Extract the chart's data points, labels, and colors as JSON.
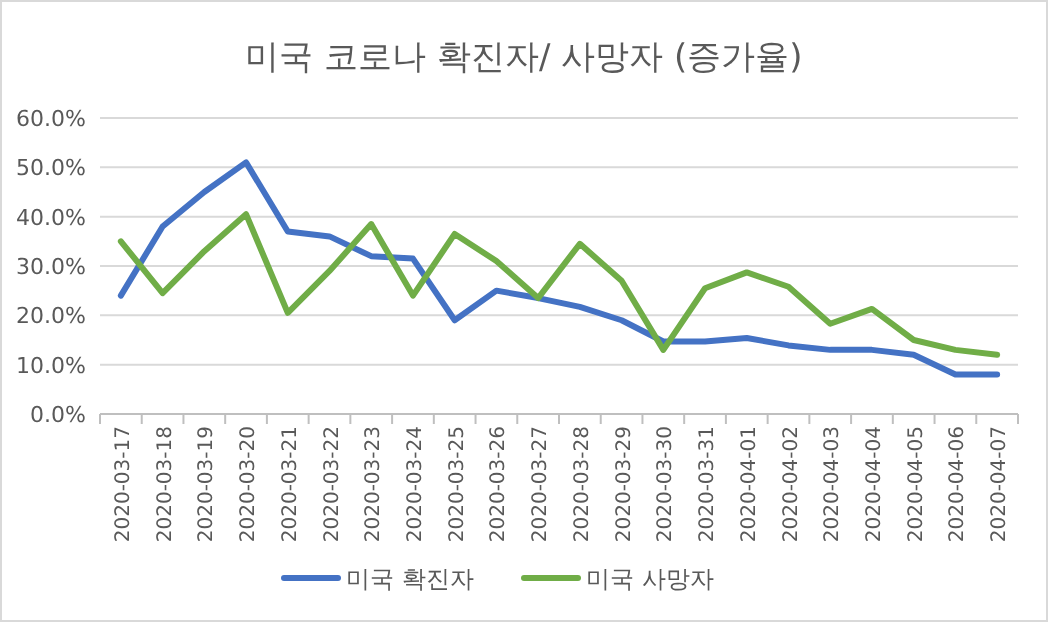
{
  "chart_data": {
    "type": "line",
    "title": "미국 코로나 확진자/ 사망자 (증가율)",
    "categories": [
      "2020-03-17",
      "2020-03-18",
      "2020-03-19",
      "2020-03-20",
      "2020-03-21",
      "2020-03-22",
      "2020-03-23",
      "2020-03-24",
      "2020-03-25",
      "2020-03-26",
      "2020-03-27",
      "2020-03-28",
      "2020-03-29",
      "2020-03-30",
      "2020-03-31",
      "2020-04-01",
      "2020-04-02",
      "2020-04-03",
      "2020-04-04",
      "2020-04-05",
      "2020-04-06",
      "2020-04-07"
    ],
    "series": [
      {
        "name": "미국 확진자",
        "color": "#4472c4",
        "values": [
          24,
          38,
          45,
          51,
          37,
          36,
          32,
          31.5,
          19,
          25,
          23.5,
          21.7,
          19,
          14.7,
          14.7,
          15.4,
          13.9,
          13,
          13,
          12,
          8,
          8
        ]
      },
      {
        "name": "미국 사망자",
        "color": "#70ad47",
        "values": [
          35,
          24.5,
          33,
          40.5,
          20.5,
          29,
          38.5,
          24,
          36.5,
          31,
          23.5,
          34.5,
          27,
          13,
          25.5,
          28.7,
          25.8,
          18.3,
          21.3,
          15,
          13,
          12
        ]
      }
    ],
    "ylim": [
      0,
      60
    ],
    "yticks": [
      {
        "value": 0,
        "label": "0.0%"
      },
      {
        "value": 10,
        "label": "10.0%"
      },
      {
        "value": 20,
        "label": "20.0%"
      },
      {
        "value": 30,
        "label": "30.0%"
      },
      {
        "value": 40,
        "label": "40.0%"
      },
      {
        "value": 50,
        "label": "50.0%"
      },
      {
        "value": 60,
        "label": "60.0%"
      }
    ],
    "grid": "y",
    "legend": "bottom",
    "marker": "none",
    "line_style": "solid"
  }
}
